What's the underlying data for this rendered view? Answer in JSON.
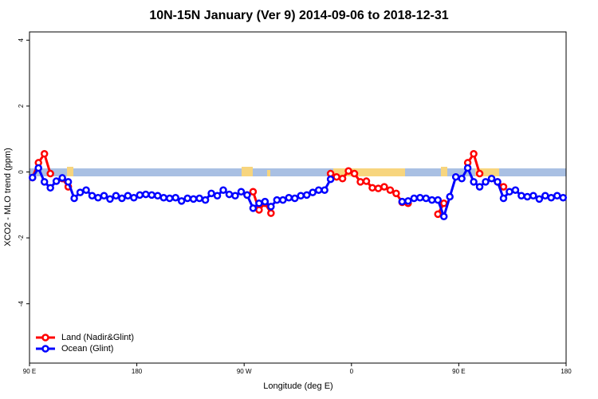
{
  "chart_data": {
    "type": "line",
    "title": "10N-15N January (Ver 9)   2014-09-06 to 2018-12-31",
    "x_label": "Longitude (deg E)",
    "y_label": "XCO2 - MLO trend (ppm)",
    "x": [
      92.5,
      97.5,
      102.5,
      107.5,
      112.5,
      117.5,
      122.5,
      127.5,
      132.5,
      137.5,
      142.5,
      147.5,
      152.5,
      157.5,
      162.5,
      167.5,
      172.5,
      177.5,
      182.5,
      187.5,
      192.5,
      197.5,
      202.5,
      207.5,
      212.5,
      217.5,
      222.5,
      227.5,
      232.5,
      237.5,
      242.5,
      247.5,
      252.5,
      257.5,
      262.5,
      267.5,
      272.5,
      277.5,
      282.5,
      287.5,
      292.5,
      297.5,
      302.5,
      307.5,
      312.5,
      317.5,
      322.5,
      327.5,
      332.5,
      337.5,
      342.5,
      347.5,
      352.5,
      357.5,
      362.5,
      367.5,
      372.5,
      377.5,
      382.5,
      387.5,
      392.5,
      397.5,
      402.5,
      407.5,
      412.5,
      417.5,
      422.5,
      427.5,
      432.5,
      437.5,
      442.5,
      447.5,
      452.5,
      457.5,
      462.5,
      467.5,
      472.5,
      477.5,
      482.5,
      487.5,
      492.5,
      497.5,
      502.5,
      507.5,
      512.5,
      517.5,
      522.5,
      527.5,
      532.5,
      537.5
    ],
    "series": [
      {
        "name": "Land (Nadir&Glint)",
        "color": "#ff0000",
        "values": [
          -0.17,
          0.28,
          0.55,
          -0.05,
          null,
          -0.2,
          -0.45,
          null,
          null,
          null,
          null,
          null,
          null,
          null,
          null,
          null,
          null,
          null,
          null,
          null,
          null,
          null,
          null,
          null,
          null,
          null,
          null,
          null,
          null,
          null,
          null,
          null,
          null,
          null,
          null,
          null,
          -0.7,
          -0.6,
          -1.15,
          -0.95,
          -1.25,
          null,
          null,
          null,
          null,
          null,
          null,
          null,
          null,
          null,
          -0.05,
          -0.15,
          -0.2,
          0.03,
          -0.05,
          -0.3,
          -0.28,
          -0.48,
          -0.5,
          -0.45,
          -0.55,
          -0.65,
          -0.92,
          -0.95,
          null,
          null,
          null,
          null,
          -1.28,
          -0.95,
          null,
          null,
          null,
          0.28,
          0.55,
          -0.05,
          null,
          null,
          -0.3,
          -0.45,
          null,
          null,
          null,
          null,
          null,
          null,
          null,
          null,
          null,
          null
        ]
      },
      {
        "name": "Ocean (Glint)",
        "color": "#0000ff",
        "values": [
          -0.17,
          0.12,
          -0.3,
          -0.48,
          -0.28,
          -0.18,
          -0.3,
          -0.8,
          -0.62,
          -0.55,
          -0.72,
          -0.78,
          -0.72,
          -0.82,
          -0.72,
          -0.8,
          -0.72,
          -0.78,
          -0.7,
          -0.68,
          -0.7,
          -0.72,
          -0.78,
          -0.8,
          -0.78,
          -0.88,
          -0.8,
          -0.82,
          -0.8,
          -0.85,
          -0.65,
          -0.72,
          -0.55,
          -0.68,
          -0.72,
          -0.6,
          -0.7,
          -1.1,
          -0.95,
          -0.9,
          -1.05,
          -0.85,
          -0.85,
          -0.78,
          -0.8,
          -0.72,
          -0.7,
          -0.62,
          -0.55,
          -0.55,
          -0.22,
          null,
          null,
          null,
          null,
          null,
          null,
          null,
          null,
          null,
          null,
          null,
          -0.9,
          -0.88,
          -0.8,
          -0.78,
          -0.8,
          -0.85,
          -0.85,
          -1.35,
          -0.75,
          -0.15,
          -0.2,
          0.12,
          -0.3,
          -0.45,
          -0.3,
          -0.2,
          -0.3,
          -0.8,
          -0.6,
          -0.55,
          -0.72,
          -0.75,
          -0.72,
          -0.82,
          -0.72,
          -0.78,
          -0.72,
          -0.78
        ]
      }
    ],
    "xlim": [
      90,
      540
    ],
    "xticks": [
      {
        "value": 90,
        "label": "90 E"
      },
      180,
      {
        "value": 270,
        "label": "90 W"
      },
      {
        "value": 360,
        "label": "0"
      },
      {
        "value": 450,
        "label": "90 E"
      },
      {
        "value": 540,
        "label": "180"
      }
    ],
    "ylim": [
      -5.8,
      4.25
    ],
    "yticks": [
      -4,
      -2,
      0,
      2,
      4
    ],
    "legend": "bottomleft"
  }
}
